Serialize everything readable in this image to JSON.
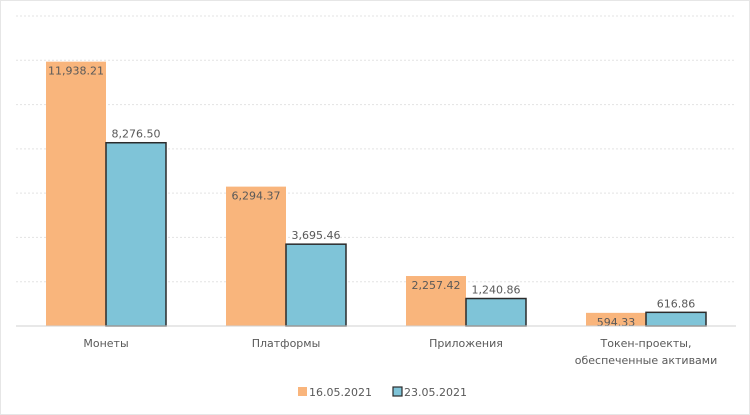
{
  "chart_data": {
    "type": "bar",
    "categories": [
      "Монеты",
      "Платформы",
      "Приложения",
      "Токен-проекты,\nобеспеченные активами"
    ],
    "series": [
      {
        "name": "16.05.2021",
        "values": [
          11938.21,
          6294.37,
          2257.42,
          594.33
        ],
        "labels": [
          "11,938.21",
          "6,294.37",
          "2,257.42",
          "594.33"
        ],
        "color": "#F9B57C"
      },
      {
        "name": "23.05.2021",
        "values": [
          8276.5,
          3695.46,
          1240.86,
          616.86
        ],
        "labels": [
          "8,276.50",
          "3,695.46",
          "1,240.86",
          "616.86"
        ],
        "color": "#7FC4D8"
      }
    ],
    "ylim": [
      0,
      14000
    ],
    "grid": true,
    "legend": "bottom"
  }
}
